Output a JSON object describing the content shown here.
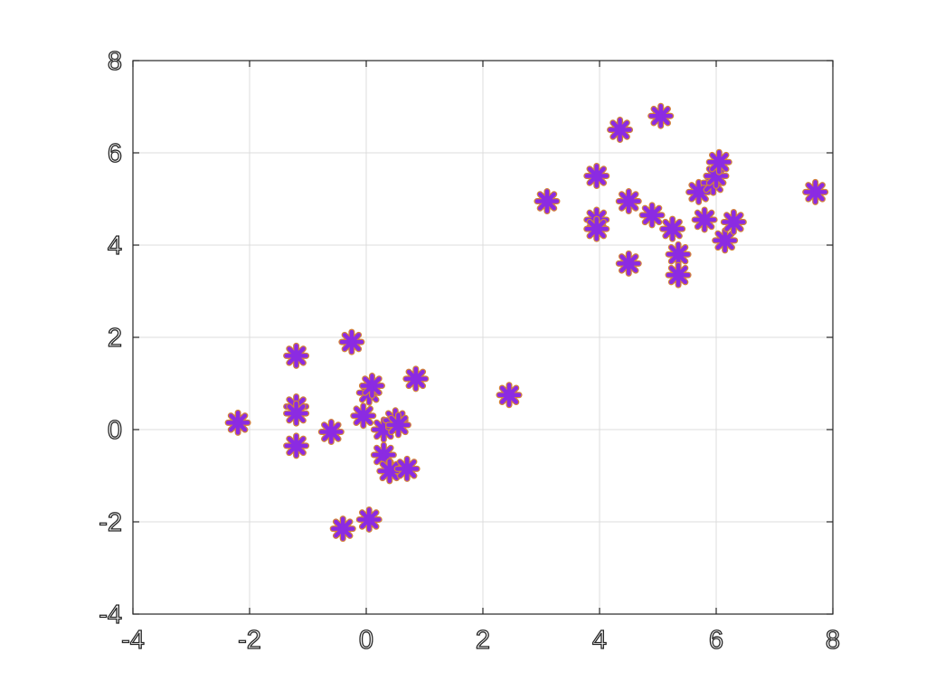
{
  "chart_data": {
    "type": "scatter",
    "title": "",
    "xlabel": "",
    "ylabel": "",
    "xlim": [
      -4,
      8
    ],
    "ylim": [
      -4,
      8
    ],
    "x_ticks": [
      -4,
      -2,
      0,
      2,
      4,
      6,
      8
    ],
    "y_ticks": [
      -4,
      -2,
      0,
      2,
      4,
      6,
      8
    ],
    "x_tick_labels": [
      "-4",
      "-2",
      "0",
      "2",
      "4",
      "6",
      "8"
    ],
    "y_tick_labels": [
      "-4",
      "-2",
      "0",
      "2",
      "4",
      "6",
      "8"
    ],
    "grid": true,
    "marker": "asterisk",
    "marker_color": "#8B2BE2",
    "marker_edge_color": "#D4843A",
    "series": [
      {
        "points": [
          [
            -2.2,
            0.15
          ],
          [
            -1.2,
            1.6
          ],
          [
            -1.2,
            0.5
          ],
          [
            -1.2,
            0.35
          ],
          [
            -1.2,
            -0.35
          ],
          [
            -0.6,
            -0.05
          ],
          [
            -0.25,
            1.9
          ],
          [
            -0.05,
            0.3
          ],
          [
            0.05,
            0.8
          ],
          [
            0.1,
            0.95
          ],
          [
            0.3,
            0.0
          ],
          [
            0.3,
            -0.55
          ],
          [
            0.4,
            -0.9
          ],
          [
            0.5,
            0.2
          ],
          [
            0.55,
            0.1
          ],
          [
            0.7,
            -0.85
          ],
          [
            0.85,
            1.1
          ],
          [
            -0.4,
            -2.15
          ],
          [
            0.05,
            -1.95
          ],
          [
            2.45,
            0.75
          ],
          [
            3.1,
            4.95
          ],
          [
            3.95,
            5.5
          ],
          [
            3.95,
            4.55
          ],
          [
            3.95,
            4.35
          ],
          [
            4.35,
            6.5
          ],
          [
            4.5,
            4.95
          ],
          [
            4.5,
            3.6
          ],
          [
            4.9,
            4.65
          ],
          [
            5.05,
            6.8
          ],
          [
            5.25,
            4.35
          ],
          [
            5.35,
            3.8
          ],
          [
            5.35,
            3.35
          ],
          [
            5.7,
            5.15
          ],
          [
            5.8,
            4.55
          ],
          [
            5.95,
            5.35
          ],
          [
            6.0,
            5.5
          ],
          [
            6.05,
            5.8
          ],
          [
            6.15,
            4.1
          ],
          [
            6.3,
            4.5
          ],
          [
            7.7,
            5.15
          ]
        ]
      }
    ]
  }
}
